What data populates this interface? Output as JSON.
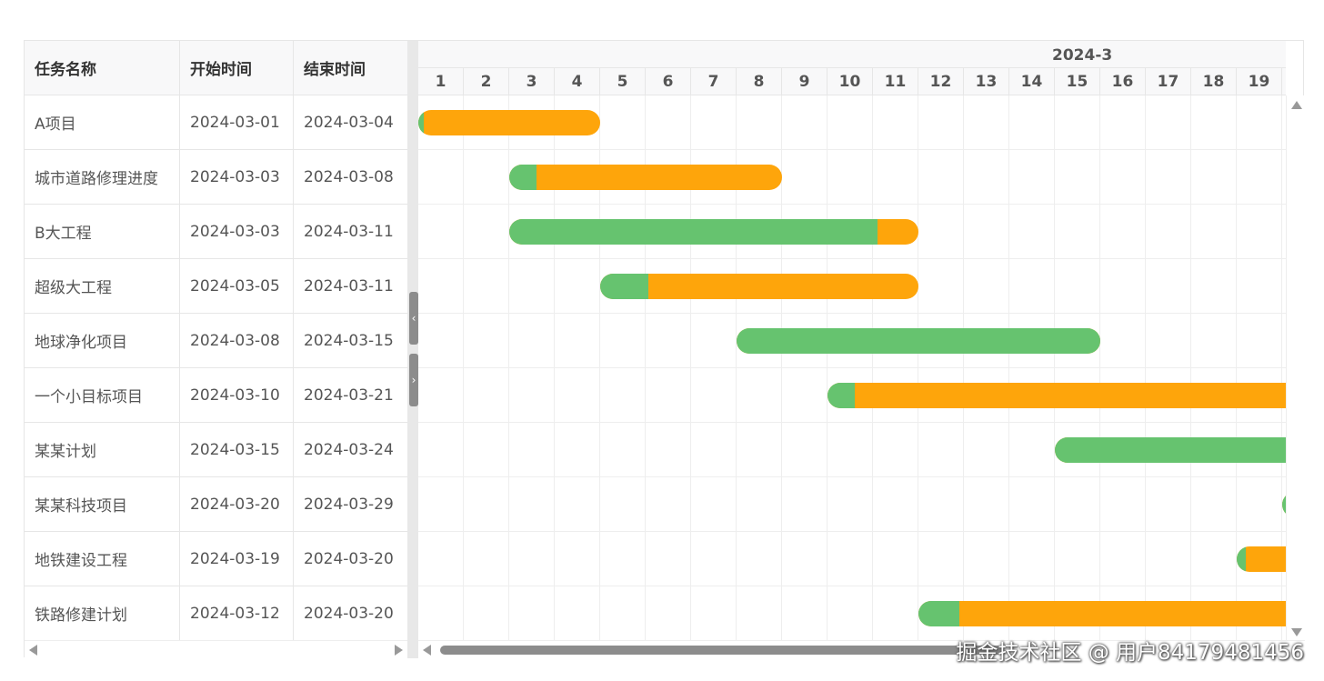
{
  "columns": [
    {
      "label": "任务名称"
    },
    {
      "label": "开始时间"
    },
    {
      "label": "结束时间"
    }
  ],
  "month_label": "2024-3",
  "days": [
    "1",
    "2",
    "3",
    "4",
    "5",
    "6",
    "7",
    "8",
    "9",
    "10",
    "11",
    "12",
    "13",
    "14",
    "15",
    "16",
    "17",
    "18",
    "19"
  ],
  "tasks": [
    {
      "name": "A项目",
      "start": "2024-03-01",
      "end": "2024-03-04",
      "progress": 0.03
    },
    {
      "name": "城市道路修理进度",
      "start": "2024-03-03",
      "end": "2024-03-08",
      "progress": 0.1
    },
    {
      "name": "B大工程",
      "start": "2024-03-03",
      "end": "2024-03-11",
      "progress": 0.9
    },
    {
      "name": "超级大工程",
      "start": "2024-03-05",
      "end": "2024-03-11",
      "progress": 0.15
    },
    {
      "name": "地球净化项目",
      "start": "2024-03-08",
      "end": "2024-03-15",
      "progress": 1.0
    },
    {
      "name": "一个小目标项目",
      "start": "2024-03-10",
      "end": "2024-03-21",
      "progress": 0.05
    },
    {
      "name": "某某计划",
      "start": "2024-03-15",
      "end": "2024-03-24",
      "progress": 1.0
    },
    {
      "name": "某某科技项目",
      "start": "2024-03-20",
      "end": "2024-03-29",
      "progress": 1.0
    },
    {
      "name": "地铁建设工程",
      "start": "2024-03-19",
      "end": "2024-03-20",
      "progress": 0.1
    },
    {
      "name": "铁路修建计划",
      "start": "2024-03-12",
      "end": "2024-03-20",
      "progress": 0.1
    }
  ],
  "colors": {
    "bar": "#fea50b",
    "progress": "#66c36f"
  },
  "watermark": "掘金技术社区 @ 用户84179481456",
  "icons": {
    "collapse": "chevron-left-icon",
    "expand": "chevron-right-icon"
  }
}
